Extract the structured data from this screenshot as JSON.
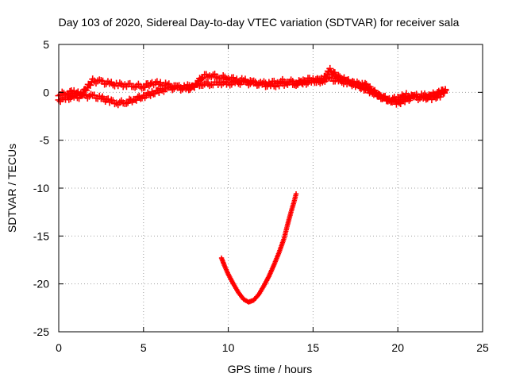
{
  "chart_data": {
    "type": "scatter",
    "title": "Day 103 of 2020, Sidereal Day-to-day VTEC variation (SDTVAR) for receiver sala",
    "xlabel": "GPS time / hours",
    "ylabel": "SDTVAR / TECUs",
    "xlim": [
      0,
      25
    ],
    "ylim": [
      -25,
      5
    ],
    "xticks": [
      0,
      5,
      10,
      15,
      20,
      25
    ],
    "yticks": [
      -25,
      -20,
      -15,
      -10,
      -5,
      0,
      5
    ],
    "grid": true,
    "marker": "+",
    "series_color": "#ff0000",
    "series": [
      {
        "name": "track-main-lower",
        "points": [
          [
            0.0,
            -0.8
          ],
          [
            0.5,
            -0.6
          ],
          [
            1.0,
            -0.5
          ],
          [
            1.5,
            -0.4
          ],
          [
            2.0,
            -0.4
          ],
          [
            2.5,
            -0.6
          ],
          [
            3.0,
            -0.9
          ],
          [
            3.5,
            -1.1
          ],
          [
            4.0,
            -1.0
          ],
          [
            4.5,
            -0.7
          ],
          [
            5.0,
            -0.4
          ],
          [
            5.5,
            -0.1
          ],
          [
            6.0,
            0.2
          ],
          [
            6.5,
            0.4
          ],
          [
            7.0,
            0.5
          ],
          [
            7.5,
            0.6
          ],
          [
            8.0,
            0.7
          ],
          [
            8.5,
            0.9
          ],
          [
            9.0,
            0.9
          ],
          [
            9.5,
            1.0
          ],
          [
            10.0,
            0.9
          ],
          [
            10.5,
            1.0
          ],
          [
            11.0,
            1.0
          ],
          [
            11.5,
            0.9
          ],
          [
            12.0,
            0.9
          ],
          [
            12.5,
            1.0
          ],
          [
            13.0,
            1.1
          ],
          [
            13.5,
            1.2
          ],
          [
            14.0,
            1.0
          ],
          [
            14.5,
            1.0
          ],
          [
            15.0,
            1.1
          ],
          [
            15.5,
            1.3
          ],
          [
            16.0,
            1.4
          ],
          [
            16.5,
            1.2
          ],
          [
            17.0,
            1.0
          ],
          [
            17.5,
            0.8
          ],
          [
            18.0,
            0.4
          ],
          [
            18.5,
            0.0
          ],
          [
            19.0,
            -0.4
          ],
          [
            19.5,
            -0.8
          ],
          [
            20.0,
            -1.1
          ],
          [
            20.5,
            -0.8
          ],
          [
            21.0,
            -0.4
          ],
          [
            21.5,
            -0.3
          ],
          [
            22.0,
            -0.6
          ],
          [
            22.5,
            -0.3
          ],
          [
            22.8,
            0.2
          ]
        ]
      },
      {
        "name": "track-main-upper",
        "points": [
          [
            0.0,
            -0.2
          ],
          [
            0.5,
            -0.1
          ],
          [
            0.9,
            0.1
          ],
          [
            1.3,
            -0.3
          ],
          [
            2.0,
            1.2
          ],
          [
            2.5,
            1.1
          ],
          [
            3.0,
            0.9
          ],
          [
            3.5,
            0.8
          ],
          [
            4.0,
            0.8
          ],
          [
            4.5,
            0.7
          ],
          [
            5.0,
            0.6
          ],
          [
            5.5,
            1.0
          ],
          [
            6.0,
            0.9
          ],
          [
            6.5,
            0.7
          ],
          [
            7.0,
            0.5
          ],
          [
            7.5,
            0.3
          ],
          [
            8.0,
            0.6
          ],
          [
            8.5,
            1.7
          ],
          [
            9.0,
            1.8
          ],
          [
            9.5,
            1.6
          ],
          [
            10.0,
            1.5
          ],
          [
            10.5,
            1.3
          ],
          [
            11.0,
            1.2
          ],
          [
            11.5,
            1.0
          ],
          [
            12.0,
            0.8
          ],
          [
            12.5,
            0.7
          ],
          [
            13.0,
            0.8
          ],
          [
            13.5,
            1.0
          ],
          [
            14.0,
            0.9
          ],
          [
            14.5,
            1.3
          ],
          [
            15.0,
            1.4
          ],
          [
            15.5,
            1.1
          ],
          [
            16.0,
            2.3
          ],
          [
            16.5,
            1.6
          ],
          [
            17.0,
            1.2
          ],
          [
            17.5,
            0.9
          ],
          [
            18.0,
            0.9
          ],
          [
            18.5,
            0.2
          ],
          [
            19.0,
            -0.5
          ],
          [
            19.5,
            -0.8
          ],
          [
            20.0,
            -0.6
          ],
          [
            20.5,
            -0.3
          ],
          [
            21.0,
            -0.5
          ],
          [
            21.5,
            -0.7
          ],
          [
            22.0,
            -0.3
          ],
          [
            22.5,
            0.0
          ],
          [
            22.8,
            0.3
          ]
        ]
      },
      {
        "name": "track-dip",
        "points": [
          [
            9.6,
            -17.3
          ],
          [
            9.8,
            -18.2
          ],
          [
            10.0,
            -19.0
          ],
          [
            10.3,
            -20.0
          ],
          [
            10.6,
            -20.9
          ],
          [
            10.9,
            -21.6
          ],
          [
            11.2,
            -21.9
          ],
          [
            11.5,
            -21.7
          ],
          [
            11.8,
            -21.1
          ],
          [
            12.1,
            -20.2
          ],
          [
            12.4,
            -19.2
          ],
          [
            12.7,
            -18.0
          ],
          [
            13.0,
            -16.7
          ],
          [
            13.3,
            -15.2
          ],
          [
            13.5,
            -13.8
          ],
          [
            13.7,
            -12.5
          ],
          [
            13.9,
            -11.3
          ],
          [
            14.0,
            -10.6
          ]
        ]
      }
    ]
  }
}
